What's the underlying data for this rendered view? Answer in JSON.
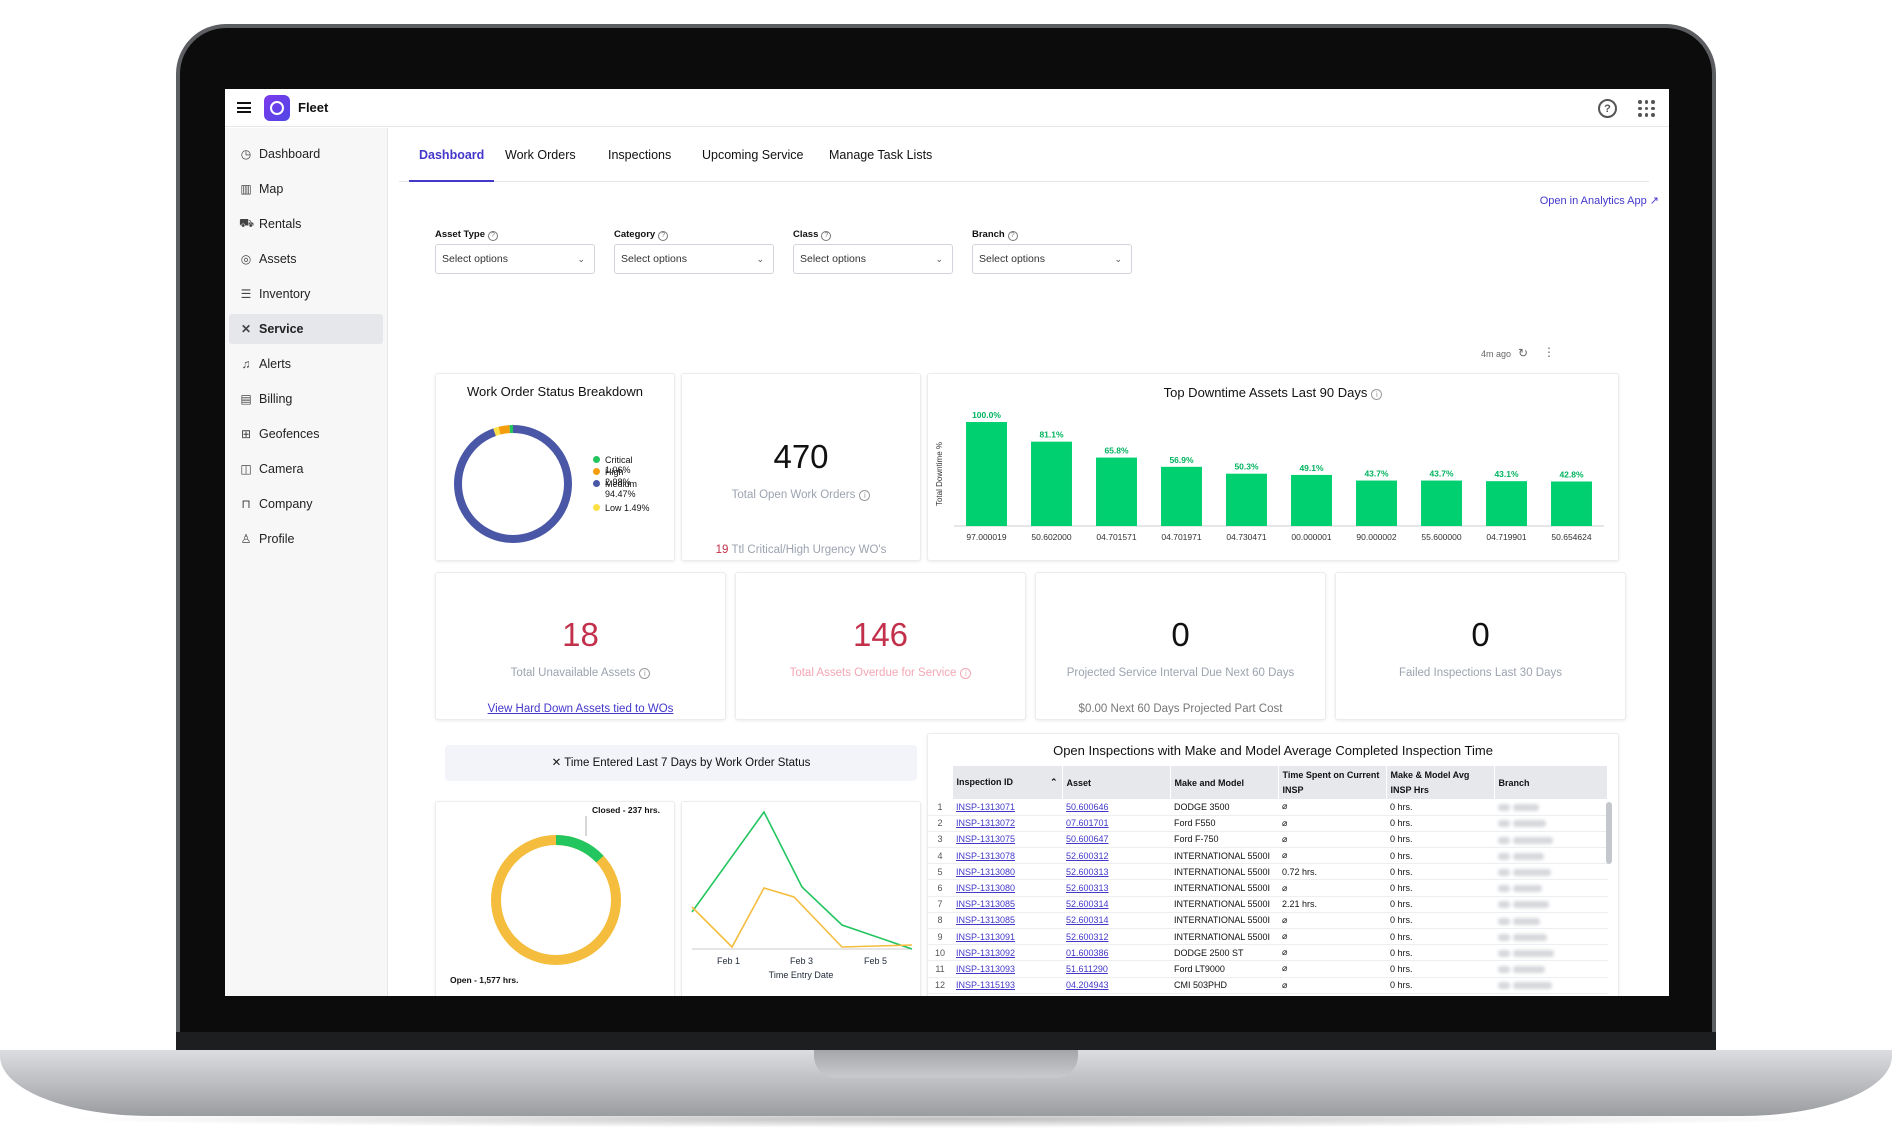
{
  "app": {
    "name": "Fleet"
  },
  "sidebar": {
    "items": [
      {
        "label": "Dashboard",
        "icon": "dashboard-icon",
        "glyph": "◷"
      },
      {
        "label": "Map",
        "icon": "map-icon",
        "glyph": "▥"
      },
      {
        "label": "Rentals",
        "icon": "truck-icon",
        "glyph": "⛟"
      },
      {
        "label": "Assets",
        "icon": "assets-icon",
        "glyph": "◎"
      },
      {
        "label": "Inventory",
        "icon": "inventory-icon",
        "glyph": "☰"
      },
      {
        "label": "Service",
        "icon": "service-icon",
        "glyph": "✕"
      },
      {
        "label": "Alerts",
        "icon": "bell-icon",
        "glyph": "♫"
      },
      {
        "label": "Billing",
        "icon": "billing-icon",
        "glyph": "▤"
      },
      {
        "label": "Geofences",
        "icon": "geofence-icon",
        "glyph": "⊞"
      },
      {
        "label": "Camera",
        "icon": "camera-icon",
        "glyph": "◫"
      },
      {
        "label": "Company",
        "icon": "company-icon",
        "glyph": "⊓"
      },
      {
        "label": "Profile",
        "icon": "profile-icon",
        "glyph": "♙"
      }
    ]
  },
  "tabs": [
    "Dashboard",
    "Work Orders",
    "Inspections",
    "Upcoming Service",
    "Manage Task Lists"
  ],
  "analytics_link": "Open in Analytics App ↗",
  "filters": [
    {
      "label": "Asset Type",
      "placeholder": "Select options"
    },
    {
      "label": "Category",
      "placeholder": "Select options"
    },
    {
      "label": "Class",
      "placeholder": "Select options"
    },
    {
      "label": "Branch",
      "placeholder": "Select options"
    }
  ],
  "refresh_time": "4m ago",
  "wo_status": {
    "title": "Work Order Status Breakdown",
    "legend": [
      "Critical 1.06%",
      "High 2.98%",
      "Medium 94.47%",
      "Low 1.49%"
    ],
    "colors": [
      "#22c55e",
      "#f59e0b",
      "#4957a6",
      "#fde047"
    ],
    "values": [
      1.06,
      2.98,
      94.47,
      1.49
    ]
  },
  "open_wo": {
    "value": "470",
    "label": "Total Open Work Orders",
    "footer_num": "19",
    "footer_text": "Ttl Critical/High Urgency WO's"
  },
  "chart_data": {
    "type": "bar",
    "title": "Top Downtime Assets Last 90 Days",
    "ylabel": "Total Downtime %",
    "categories": [
      "97.000019",
      "50.602000",
      "04.701571",
      "04.701971",
      "04.730471",
      "00.000001",
      "90.000002",
      "55.600000",
      "04.719901",
      "50.654624"
    ],
    "values": [
      100.0,
      81.1,
      65.8,
      56.9,
      50.3,
      49.1,
      43.7,
      43.7,
      43.1,
      42.8
    ],
    "value_labels": [
      "100.0%",
      "81.1%",
      "65.8%",
      "56.9%",
      "50.3%",
      "49.1%",
      "43.7%",
      "43.7%",
      "43.1%",
      "42.8%"
    ],
    "ylim": [
      0,
      100
    ],
    "color": "#00d06f"
  },
  "kpis": [
    {
      "value": "18",
      "label": "Total Unavailable Assets",
      "footer": "View Hard Down Assets tied to WOs"
    },
    {
      "value": "146",
      "label": "Total Assets Overdue for Service"
    },
    {
      "value": "0",
      "label": "Projected Service Interval Due Next 60 Days",
      "footer": "$0.00 Next 60 Days Projected Part Cost"
    },
    {
      "value": "0",
      "label": "Failed Inspections Last 30 Days"
    }
  ],
  "time_entered": {
    "title": "Time Entered Last 7 Days by Work Order Status",
    "donut": {
      "closed_label": "Closed - 237 hrs.",
      "open_label": "Open - 1,577 hrs.",
      "closed": 237,
      "open": 1577
    },
    "line": {
      "xlabel": "Time Entry Date",
      "ticks": [
        "Feb 1",
        "Feb 3",
        "Feb 5"
      ]
    }
  },
  "inspections": {
    "title": "Open Inspections with Make and Model Average Completed Inspection Time",
    "headers": [
      "Inspection ID",
      "Asset",
      "Make and Model",
      "Time Spent on Current INSP",
      "Make & Model Avg INSP Hrs",
      "Branch"
    ],
    "rows": [
      [
        "1",
        "INSP-1313071",
        "50.600646",
        "DODGE 3500",
        "",
        "0 hrs."
      ],
      [
        "2",
        "INSP-1313072",
        "07.601701",
        "Ford F550",
        "",
        "0 hrs."
      ],
      [
        "3",
        "INSP-1313075",
        "50.600647",
        "Ford F-750",
        "",
        "0 hrs."
      ],
      [
        "4",
        "INSP-1313078",
        "52.600312",
        "INTERNATIONAL 5500I",
        "",
        "0 hrs."
      ],
      [
        "5",
        "INSP-1313080",
        "52.600313",
        "INTERNATIONAL 5500I",
        "0.72 hrs.",
        "0 hrs."
      ],
      [
        "6",
        "INSP-1313080",
        "52.600313",
        "INTERNATIONAL 5500I",
        "",
        "0 hrs."
      ],
      [
        "7",
        "INSP-1313085",
        "52.600314",
        "INTERNATIONAL 5500I",
        "2.21 hrs.",
        "0 hrs."
      ],
      [
        "8",
        "INSP-1313085",
        "52.600314",
        "INTERNATIONAL 5500I",
        "",
        "0 hrs."
      ],
      [
        "9",
        "INSP-1313091",
        "52.600312",
        "INTERNATIONAL 5500I",
        "",
        "0 hrs."
      ],
      [
        "10",
        "INSP-1313092",
        "01.600386",
        "DODGE 2500 ST",
        "",
        "0 hrs."
      ],
      [
        "11",
        "INSP-1313093",
        "51.611290",
        "Ford LT9000",
        "",
        "0 hrs."
      ],
      [
        "12",
        "INSP-1315193",
        "04.204943",
        "CMI 503PHD",
        "",
        "0 hrs."
      ]
    ]
  }
}
